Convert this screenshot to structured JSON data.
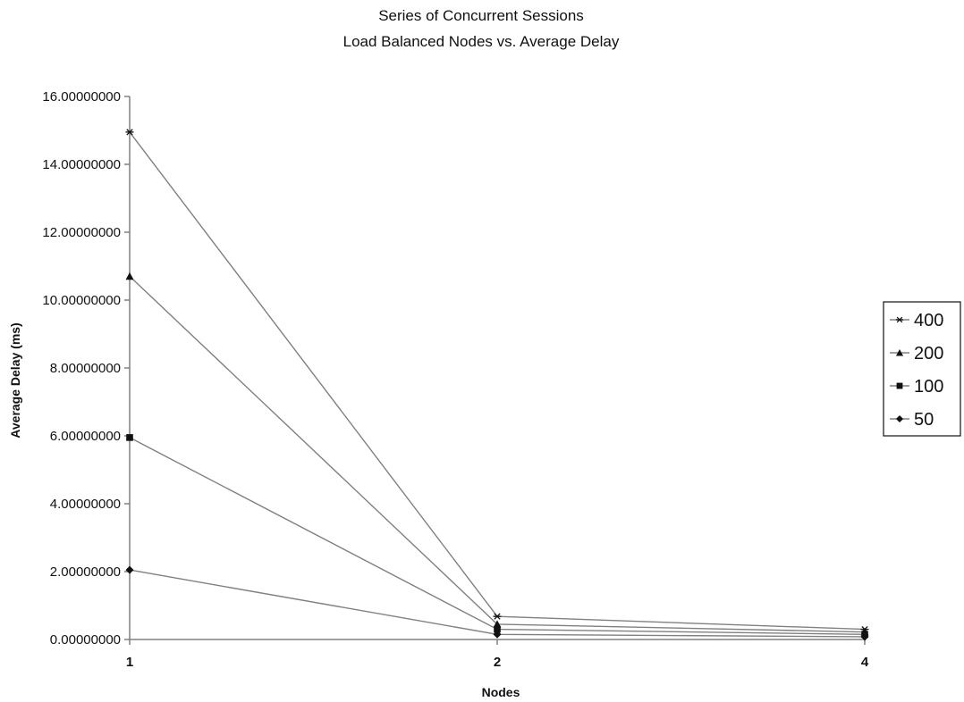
{
  "chart_data": {
    "type": "line",
    "title": "Series of Concurrent Sessions",
    "subtitle": "Load Balanced Nodes vs. Average Delay",
    "xlabel": "Nodes",
    "ylabel": "Average Delay (ms)",
    "categories": [
      "1",
      "2",
      "4"
    ],
    "ylim": [
      0,
      16
    ],
    "yticks": [
      0,
      2,
      4,
      6,
      8,
      10,
      12,
      14,
      16
    ],
    "ytick_labels": [
      "0.00000000",
      "2.00000000",
      "4.00000000",
      "6.00000000",
      "8.00000000",
      "10.00000000",
      "12.00000000",
      "14.00000000",
      "16.00000000"
    ],
    "grid": false,
    "legend_position": "right",
    "series": [
      {
        "name": "400",
        "marker": "star",
        "color": "#808080",
        "values": [
          14.95,
          0.68,
          0.3
        ]
      },
      {
        "name": "200",
        "marker": "triangle",
        "color": "#808080",
        "values": [
          10.7,
          0.45,
          0.22
        ]
      },
      {
        "name": "100",
        "marker": "square",
        "color": "#808080",
        "values": [
          5.95,
          0.3,
          0.15
        ]
      },
      {
        "name": "50",
        "marker": "diamond",
        "color": "#808080",
        "values": [
          2.05,
          0.15,
          0.08
        ]
      }
    ]
  }
}
